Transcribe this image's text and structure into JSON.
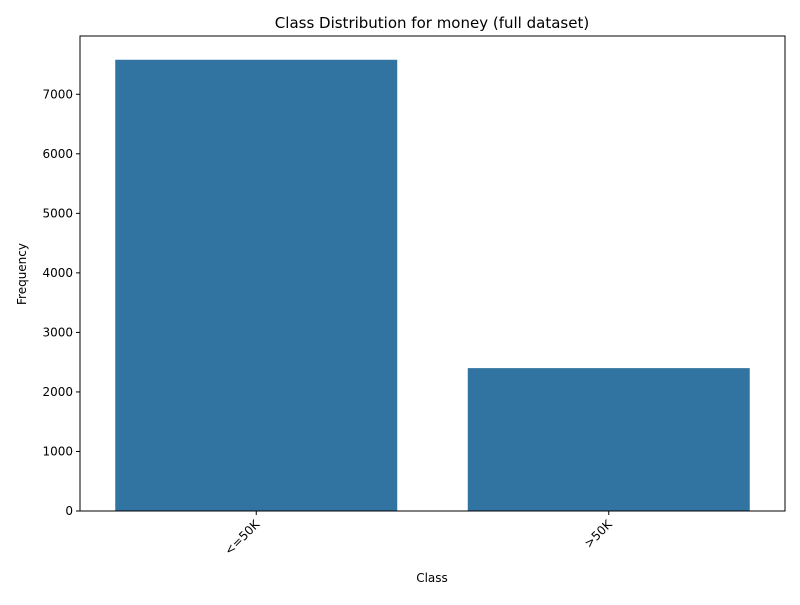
{
  "chart_data": {
    "type": "bar",
    "title": "Class Distribution for money (full dataset)",
    "xlabel": "Class",
    "ylabel": "Frequency",
    "categories": [
      "<=50K",
      ">50K"
    ],
    "values": [
      7580,
      2400
    ],
    "ylim": [
      0,
      7979
    ],
    "yticks": [
      0,
      1000,
      2000,
      3000,
      4000,
      5000,
      6000,
      7000
    ],
    "ytick_labels": [
      "0",
      "1000",
      "2000",
      "3000",
      "4000",
      "5000",
      "6000",
      "7000"
    ],
    "grid": false,
    "legend": "none",
    "bar_color": "#3274a1",
    "xtick_rotation_deg": 45
  }
}
